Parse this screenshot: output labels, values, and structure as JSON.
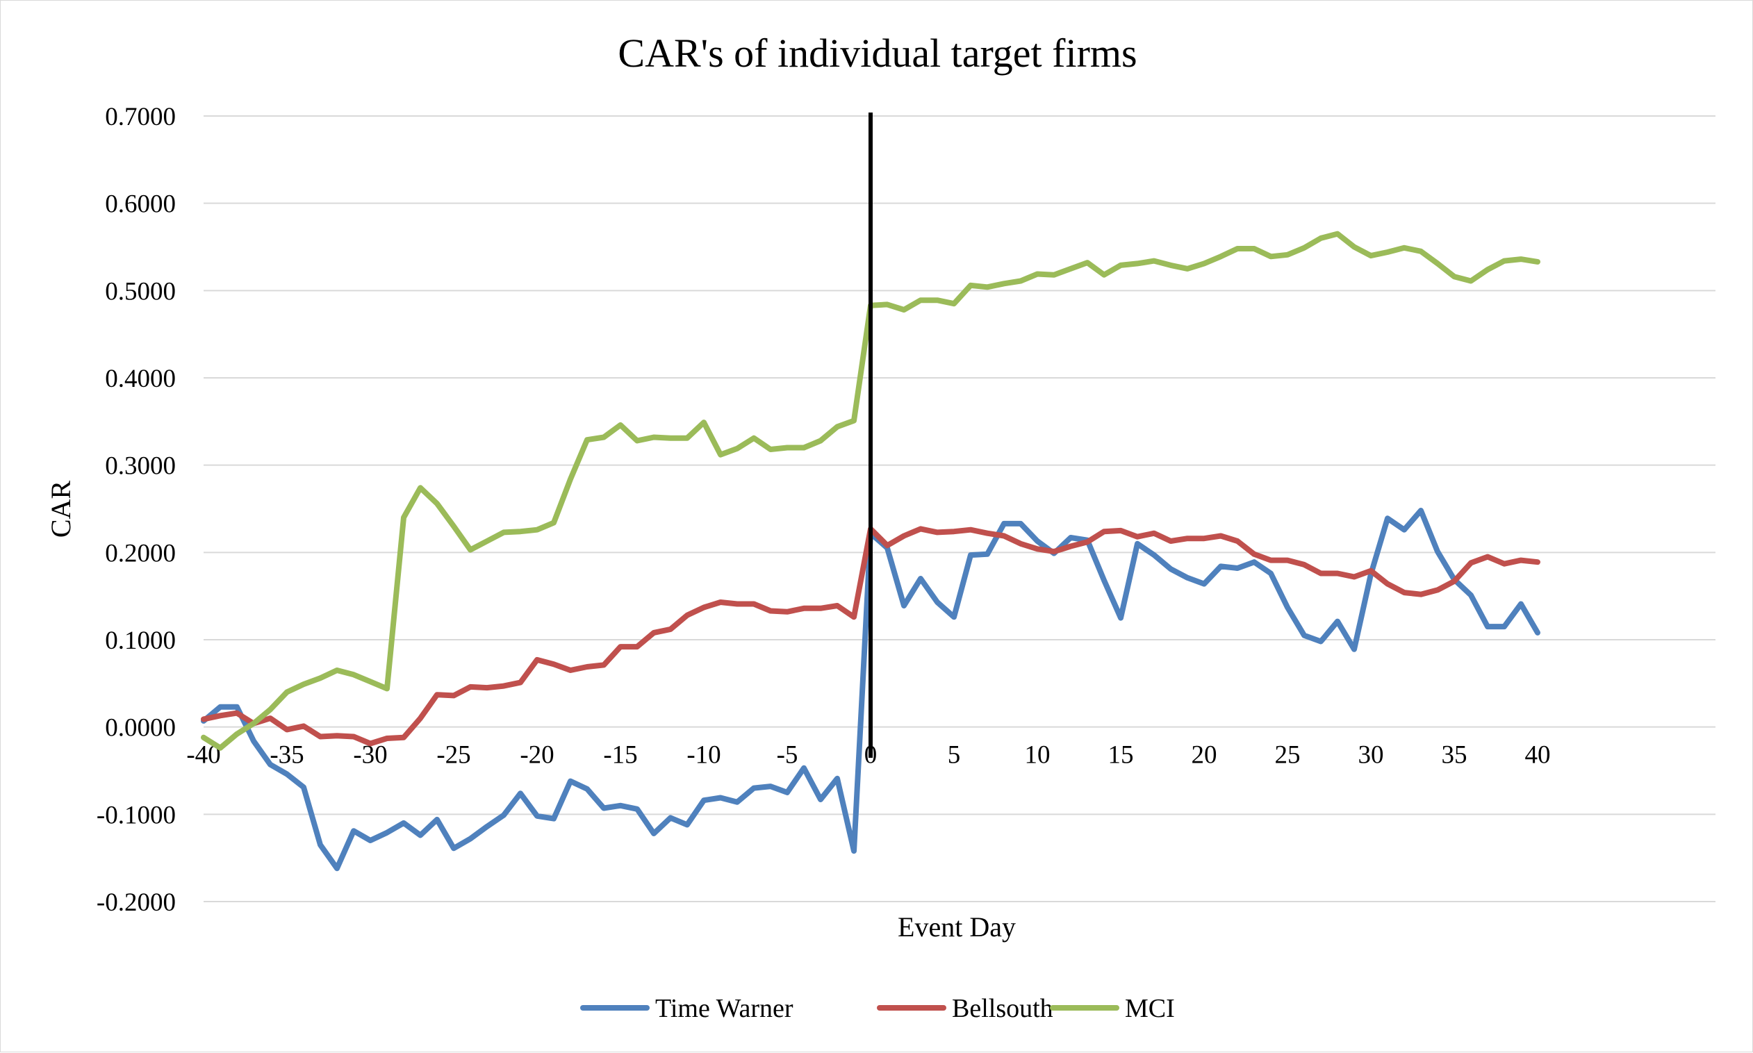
{
  "chart_data": {
    "type": "line",
    "title": "CAR's of individual target firms",
    "xlabel": "Event Day",
    "ylabel": "CAR",
    "xlim": [
      -40,
      40
    ],
    "ylim": [
      -0.2,
      0.7
    ],
    "x_ticks": [
      "-40",
      "-35",
      "-30",
      "-25",
      "-20",
      "-15",
      "-10",
      "-5",
      "0",
      "5",
      "10",
      "15",
      "20",
      "25",
      "30",
      "35",
      "40"
    ],
    "x_tick_values": [
      -40,
      -35,
      -30,
      -25,
      -20,
      -15,
      -10,
      -5,
      0,
      5,
      10,
      15,
      20,
      25,
      30,
      35,
      40
    ],
    "y_ticks": [
      "0.7000",
      "0.6000",
      "0.5000",
      "0.4000",
      "0.3000",
      "0.2000",
      "0.1000",
      "0.0000",
      "-0.1000",
      "-0.2000"
    ],
    "y_tick_values": [
      0.7,
      0.6,
      0.5,
      0.4,
      0.3,
      0.2,
      0.1,
      0.0,
      -0.1,
      -0.2
    ],
    "grid": "horizontal",
    "event_line_x": 0,
    "legend_position": "bottom",
    "x": [
      -40,
      -39,
      -38,
      -37,
      -36,
      -35,
      -34,
      -33,
      -32,
      -31,
      -30,
      -29,
      -28,
      -27,
      -26,
      -25,
      -24,
      -23,
      -22,
      -21,
      -20,
      -19,
      -18,
      -17,
      -16,
      -15,
      -14,
      -13,
      -12,
      -11,
      -10,
      -9,
      -8,
      -7,
      -6,
      -5,
      -4,
      -3,
      -2,
      -1,
      0,
      1,
      2,
      3,
      4,
      5,
      6,
      7,
      8,
      9,
      10,
      11,
      12,
      13,
      14,
      15,
      16,
      17,
      18,
      19,
      20,
      21,
      22,
      23,
      24,
      25,
      26,
      27,
      28,
      29,
      30,
      31,
      32,
      33,
      34,
      35,
      36,
      37,
      38,
      39,
      40
    ],
    "series": [
      {
        "name": "Time Warner",
        "color": "#4f81bd",
        "values": [
          0.007,
          0.023,
          0.023,
          -0.016,
          -0.043,
          -0.054,
          -0.069,
          -0.135,
          -0.162,
          -0.119,
          -0.13,
          -0.121,
          -0.11,
          -0.124,
          -0.106,
          -0.139,
          -0.128,
          -0.114,
          -0.101,
          -0.076,
          -0.102,
          -0.105,
          -0.062,
          -0.071,
          -0.093,
          -0.09,
          -0.094,
          -0.122,
          -0.104,
          -0.112,
          -0.084,
          -0.081,
          -0.086,
          -0.07,
          -0.068,
          -0.075,
          -0.047,
          -0.083,
          -0.059,
          -0.142,
          0.222,
          0.205,
          0.139,
          0.17,
          0.143,
          0.126,
          0.197,
          0.198,
          0.233,
          0.233,
          0.213,
          0.199,
          0.217,
          0.214,
          0.168,
          0.125,
          0.21,
          0.197,
          0.181,
          0.171,
          0.164,
          0.184,
          0.182,
          0.189,
          0.176,
          0.137,
          0.105,
          0.098,
          0.121,
          0.089,
          0.175,
          0.239,
          0.226,
          0.248,
          0.201,
          0.169,
          0.151,
          0.115,
          0.115,
          0.141,
          0.108
        ]
      },
      {
        "name": "Bellsouth",
        "color": "#c0504d",
        "values": [
          0.009,
          0.013,
          0.016,
          0.004,
          0.01,
          -0.003,
          0.001,
          -0.011,
          -0.01,
          -0.011,
          -0.019,
          -0.013,
          -0.012,
          0.01,
          0.037,
          0.036,
          0.046,
          0.045,
          0.047,
          0.051,
          0.077,
          0.072,
          0.065,
          0.069,
          0.071,
          0.092,
          0.092,
          0.108,
          0.112,
          0.128,
          0.137,
          0.143,
          0.141,
          0.141,
          0.133,
          0.132,
          0.136,
          0.136,
          0.139,
          0.126,
          0.227,
          0.208,
          0.219,
          0.227,
          0.223,
          0.224,
          0.226,
          0.222,
          0.219,
          0.21,
          0.204,
          0.201,
          0.207,
          0.212,
          0.224,
          0.225,
          0.218,
          0.222,
          0.213,
          0.216,
          0.216,
          0.219,
          0.213,
          0.198,
          0.191,
          0.191,
          0.186,
          0.176,
          0.176,
          0.172,
          0.179,
          0.164,
          0.154,
          0.152,
          0.157,
          0.167,
          0.188,
          0.195,
          0.187,
          0.191,
          0.189
        ]
      },
      {
        "name": "MCI",
        "color": "#9bbb59",
        "values": [
          -0.012,
          -0.024,
          -0.008,
          0.004,
          0.02,
          0.04,
          0.049,
          0.056,
          0.065,
          0.06,
          0.052,
          0.044,
          0.24,
          0.274,
          0.256,
          0.23,
          0.203,
          0.213,
          0.223,
          0.224,
          0.226,
          0.234,
          0.284,
          0.329,
          0.332,
          0.346,
          0.328,
          0.332,
          0.331,
          0.331,
          0.349,
          0.312,
          0.319,
          0.331,
          0.318,
          0.32,
          0.32,
          0.328,
          0.344,
          0.351,
          0.483,
          0.484,
          0.478,
          0.489,
          0.489,
          0.485,
          0.506,
          0.504,
          0.508,
          0.511,
          0.519,
          0.518,
          0.525,
          0.532,
          0.518,
          0.529,
          0.531,
          0.534,
          0.529,
          0.525,
          0.531,
          0.539,
          0.548,
          0.548,
          0.539,
          0.541,
          0.549,
          0.56,
          0.565,
          0.55,
          0.54,
          0.544,
          0.549,
          0.545,
          0.531,
          0.516,
          0.511,
          0.524,
          0.534,
          0.536,
          0.533
        ]
      }
    ]
  }
}
